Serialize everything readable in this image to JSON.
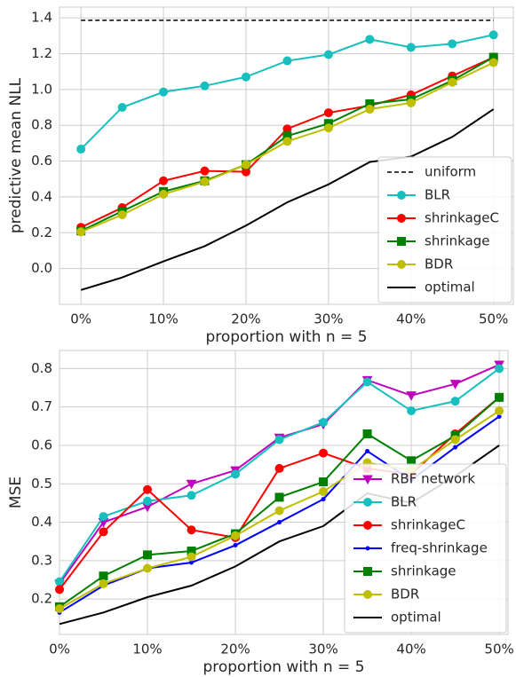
{
  "chart_data": [
    {
      "type": "line",
      "ylabel": "predictive mean NLL",
      "xlabel": "proportion with n = 5",
      "x": [
        0,
        5,
        10,
        15,
        20,
        25,
        30,
        35,
        40,
        45,
        50
      ],
      "xlim": [
        -2.6,
        52.4
      ],
      "ylim": [
        -0.2,
        1.46
      ],
      "xticks": [
        {
          "value": 0,
          "label": "0%"
        },
        {
          "value": 10,
          "label": "10%"
        },
        {
          "value": 20,
          "label": "20%"
        },
        {
          "value": 30,
          "label": "30%"
        },
        {
          "value": 40,
          "label": "40%"
        },
        {
          "value": 50,
          "label": "50%"
        }
      ],
      "yticks": [
        {
          "value": 0,
          "label": "0.0"
        },
        0.2,
        0.4,
        0.6,
        0.8,
        {
          "value": 1,
          "label": "1.0"
        },
        1.2,
        1.4
      ],
      "grid": true,
      "legend": "lower right",
      "series": [
        {
          "name": "uniform",
          "color": "#000000",
          "dash": true,
          "marker": "none",
          "values": [
            1.386,
            1.386,
            1.386,
            1.386,
            1.386,
            1.386,
            1.386,
            1.386,
            1.386,
            1.386,
            1.386
          ]
        },
        {
          "name": "BLR",
          "color": "#17bfbf",
          "marker": "circle",
          "values": [
            0.667,
            0.9,
            0.986,
            1.02,
            1.07,
            1.16,
            1.195,
            1.28,
            1.235,
            1.255,
            1.305
          ]
        },
        {
          "name": "shrinkageC",
          "color": "#ff0000",
          "marker": "circle",
          "values": [
            0.23,
            0.34,
            0.49,
            0.545,
            0.54,
            0.78,
            0.87,
            0.91,
            0.97,
            1.075,
            1.18
          ]
        },
        {
          "name": "shrinkage",
          "color": "#008000",
          "marker": "square",
          "values": [
            0.21,
            0.32,
            0.43,
            0.49,
            0.58,
            0.74,
            0.81,
            0.92,
            0.945,
            1.05,
            1.18
          ]
        },
        {
          "name": "BDR",
          "color": "#bfbf00",
          "marker": "circle",
          "values": [
            0.205,
            0.3,
            0.415,
            0.485,
            0.58,
            0.71,
            0.785,
            0.89,
            0.925,
            1.04,
            1.15
          ]
        },
        {
          "name": "optimal",
          "color": "#000000",
          "marker": "none",
          "values": [
            -0.12,
            -0.05,
            0.04,
            0.125,
            0.24,
            0.37,
            0.47,
            0.595,
            0.625,
            0.735,
            0.89
          ]
        }
      ]
    },
    {
      "type": "line",
      "ylabel": "MSE",
      "xlabel": "proportion with n = 5",
      "x": [
        0,
        5,
        10,
        15,
        20,
        25,
        30,
        35,
        40,
        45,
        50
      ],
      "xlim": [
        0,
        51
      ],
      "ylim": [
        0.108,
        0.847
      ],
      "xticks": [
        {
          "value": 0,
          "label": "0%"
        },
        {
          "value": 10,
          "label": "10%"
        },
        {
          "value": 20,
          "label": "20%"
        },
        {
          "value": 30,
          "label": "30%"
        },
        {
          "value": 40,
          "label": "40%"
        },
        {
          "value": 50,
          "label": "50%"
        }
      ],
      "yticks": [
        0.2,
        0.3,
        0.4,
        0.5,
        0.6,
        0.7,
        0.8
      ],
      "grid": true,
      "legend": "lower right",
      "series": [
        {
          "name": "RBF network",
          "color": "#bf00bf",
          "marker": "triangle-down",
          "values": [
            0.24,
            0.4,
            0.44,
            0.5,
            0.535,
            0.62,
            0.655,
            0.77,
            0.73,
            0.76,
            0.81
          ]
        },
        {
          "name": "BLR",
          "color": "#17bfbf",
          "marker": "circle",
          "values": [
            0.245,
            0.415,
            0.455,
            0.47,
            0.525,
            0.615,
            0.66,
            0.765,
            0.69,
            0.715,
            0.8
          ]
        },
        {
          "name": "shrinkageC",
          "color": "#ff0000",
          "marker": "circle",
          "values": [
            0.225,
            0.375,
            0.485,
            0.38,
            0.36,
            0.54,
            0.58,
            0.54,
            0.525,
            0.63,
            0.725
          ]
        },
        {
          "name": "freq-shrinkage",
          "color": "#0000ff",
          "marker": "dot",
          "values": [
            0.165,
            0.235,
            0.28,
            0.295,
            0.34,
            0.4,
            0.46,
            0.585,
            0.51,
            0.595,
            0.675
          ]
        },
        {
          "name": "shrinkage",
          "color": "#008000",
          "marker": "square",
          "values": [
            0.18,
            0.26,
            0.315,
            0.325,
            0.37,
            0.465,
            0.505,
            0.63,
            0.56,
            0.625,
            0.725
          ]
        },
        {
          "name": "BDR",
          "color": "#bfbf00",
          "marker": "circle",
          "values": [
            0.175,
            0.24,
            0.28,
            0.31,
            0.365,
            0.43,
            0.48,
            0.555,
            0.535,
            0.615,
            0.69
          ]
        },
        {
          "name": "optimal",
          "color": "#000000",
          "marker": "none",
          "values": [
            0.135,
            0.165,
            0.205,
            0.235,
            0.285,
            0.35,
            0.39,
            0.475,
            0.45,
            0.52,
            0.6
          ]
        }
      ]
    }
  ]
}
